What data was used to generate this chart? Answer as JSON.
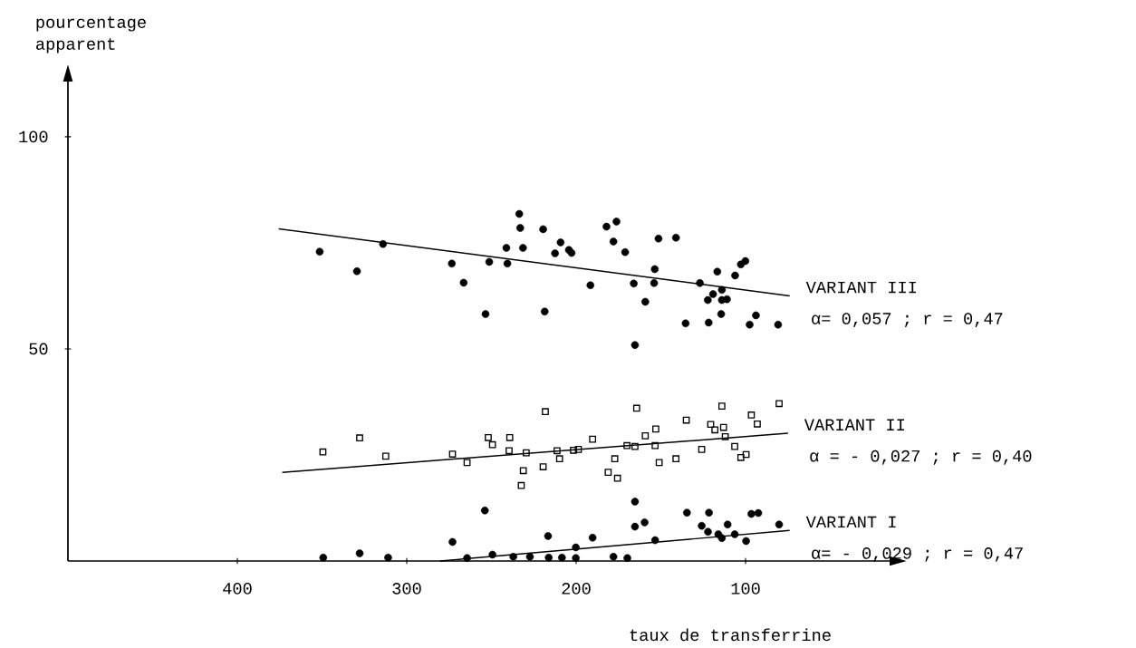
{
  "chart_data": {
    "type": "scatter",
    "xlabel": "taux de transferrine",
    "ylabel": "pourcentage apparent",
    "xlim": [
      500,
      15
    ],
    "ylim": [
      0,
      113
    ],
    "xticks": [
      400,
      300,
      200,
      100
    ],
    "yticks": [
      50,
      100
    ],
    "grid": false,
    "series": [
      {
        "marker": "circle",
        "color": "#000000",
        "x": [
          351.4,
          329.4,
          314,
          273.4,
          266.4,
          251.3,
          253.5,
          240.6,
          241.2,
          233.6,
          233,
          231.4,
          219.5,
          218.6,
          212.5,
          209.2,
          204.3,
          202.7,
          191.6,
          182.1,
          176.2,
          178,
          171.1,
          166,
          165.3,
          159.2,
          154,
          153.6,
          151.4,
          141.1,
          135.4,
          127,
          121.8,
          122.3,
          119.2,
          116.7,
          114.4,
          114,
          114,
          111,
          106.2,
          102.8,
          100.1,
          97.6,
          93.9,
          80.8
        ],
        "values": [
          72.9,
          68.3,
          74.7,
          70.1,
          65.6,
          70.5,
          58.2,
          70.1,
          73.8,
          81.8,
          78.5,
          73.8,
          78.2,
          58.8,
          72.5,
          75.1,
          73.3,
          72.6,
          65,
          78.8,
          80,
          75.3,
          72.8,
          65.4,
          50.9,
          61.1,
          65.5,
          68.8,
          76,
          76.2,
          56,
          65.5,
          56.2,
          61.5,
          62.9,
          68.2,
          58.2,
          61.5,
          63.9,
          61.7,
          67.3,
          69.9,
          70.7,
          55.7,
          57.9,
          55.7
        ]
      },
      {
        "type": "line",
        "name": "VARIANT III",
        "color": "#000000",
        "x": [
          375.6,
          74
        ],
        "values": [
          78.3,
          62.5
        ]
      },
      {
        "marker": "square",
        "color": "#000000",
        "x": [
          349.5,
          327.8,
          312.4,
          273,
          264.4,
          251.9,
          249.4,
          239.6,
          239.2,
          229.5,
          231.2,
          232.4,
          219.5,
          218.2,
          211.3,
          209.8,
          201.6,
          198.7,
          190.3,
          181.1,
          177.2,
          175.6,
          170,
          165.3,
          164.3,
          159.2,
          153,
          153.4,
          151,
          141.1,
          135,
          125.9,
          120.6,
          118.1,
          114,
          113,
          112,
          106.4,
          102.8,
          99.7,
          96.6,
          93.1,
          80.2
        ],
        "values": [
          25.7,
          29,
          24.7,
          25.2,
          23.2,
          29.1,
          27.4,
          26,
          29.1,
          25.5,
          21.3,
          17.8,
          22.2,
          35.2,
          26,
          24.1,
          26.1,
          26.3,
          28.7,
          20.9,
          24.1,
          19.5,
          27.2,
          27,
          36,
          29.5,
          31.1,
          27.2,
          23.2,
          24.1,
          33.2,
          26.3,
          32.2,
          30.9,
          36.5,
          31.5,
          29.3,
          27,
          24.4,
          25.1,
          34.4,
          32.3,
          37.1
        ]
      },
      {
        "type": "line",
        "name": "VARIANT II",
        "color": "#000000",
        "x": [
          373.5,
          75
        ],
        "values": [
          20.9,
          30.1
        ]
      },
      {
        "marker": "circle",
        "color": "#000000",
        "x": [
          349.3,
          327.8,
          311,
          273,
          264.4,
          253.9,
          249.4,
          237.1,
          227.3,
          216.6,
          216.2,
          208.4,
          200.2,
          200.2,
          190.3,
          178,
          169.8,
          165.3,
          165.3,
          159.6,
          153.4,
          134.6,
          125.9,
          121.6,
          122.2,
          116.1,
          114,
          110.6,
          106.4,
          99.7,
          96.6,
          92.5,
          80.2
        ],
        "values": [
          0.8,
          1.8,
          0.8,
          4.5,
          0.7,
          11.9,
          1.5,
          1,
          1,
          5.9,
          0.8,
          0.8,
          3.2,
          0.7,
          5.5,
          1,
          0.7,
          14,
          8.1,
          9.1,
          4.9,
          11.4,
          8.3,
          11.4,
          6.9,
          6.3,
          5.4,
          8.6,
          6.3,
          4.7,
          11.1,
          11.3,
          8.6
        ]
      },
      {
        "type": "line",
        "name": "VARIANT I",
        "color": "#000000",
        "x": [
          280.2,
          74
        ],
        "values": [
          0,
          7.2
        ]
      }
    ],
    "annotations": [
      "α= 0,057 ;  r = 0,47",
      "α = - 0,027 ; r = 0,40",
      "α= -  0,029 ; r = 0,47"
    ]
  }
}
